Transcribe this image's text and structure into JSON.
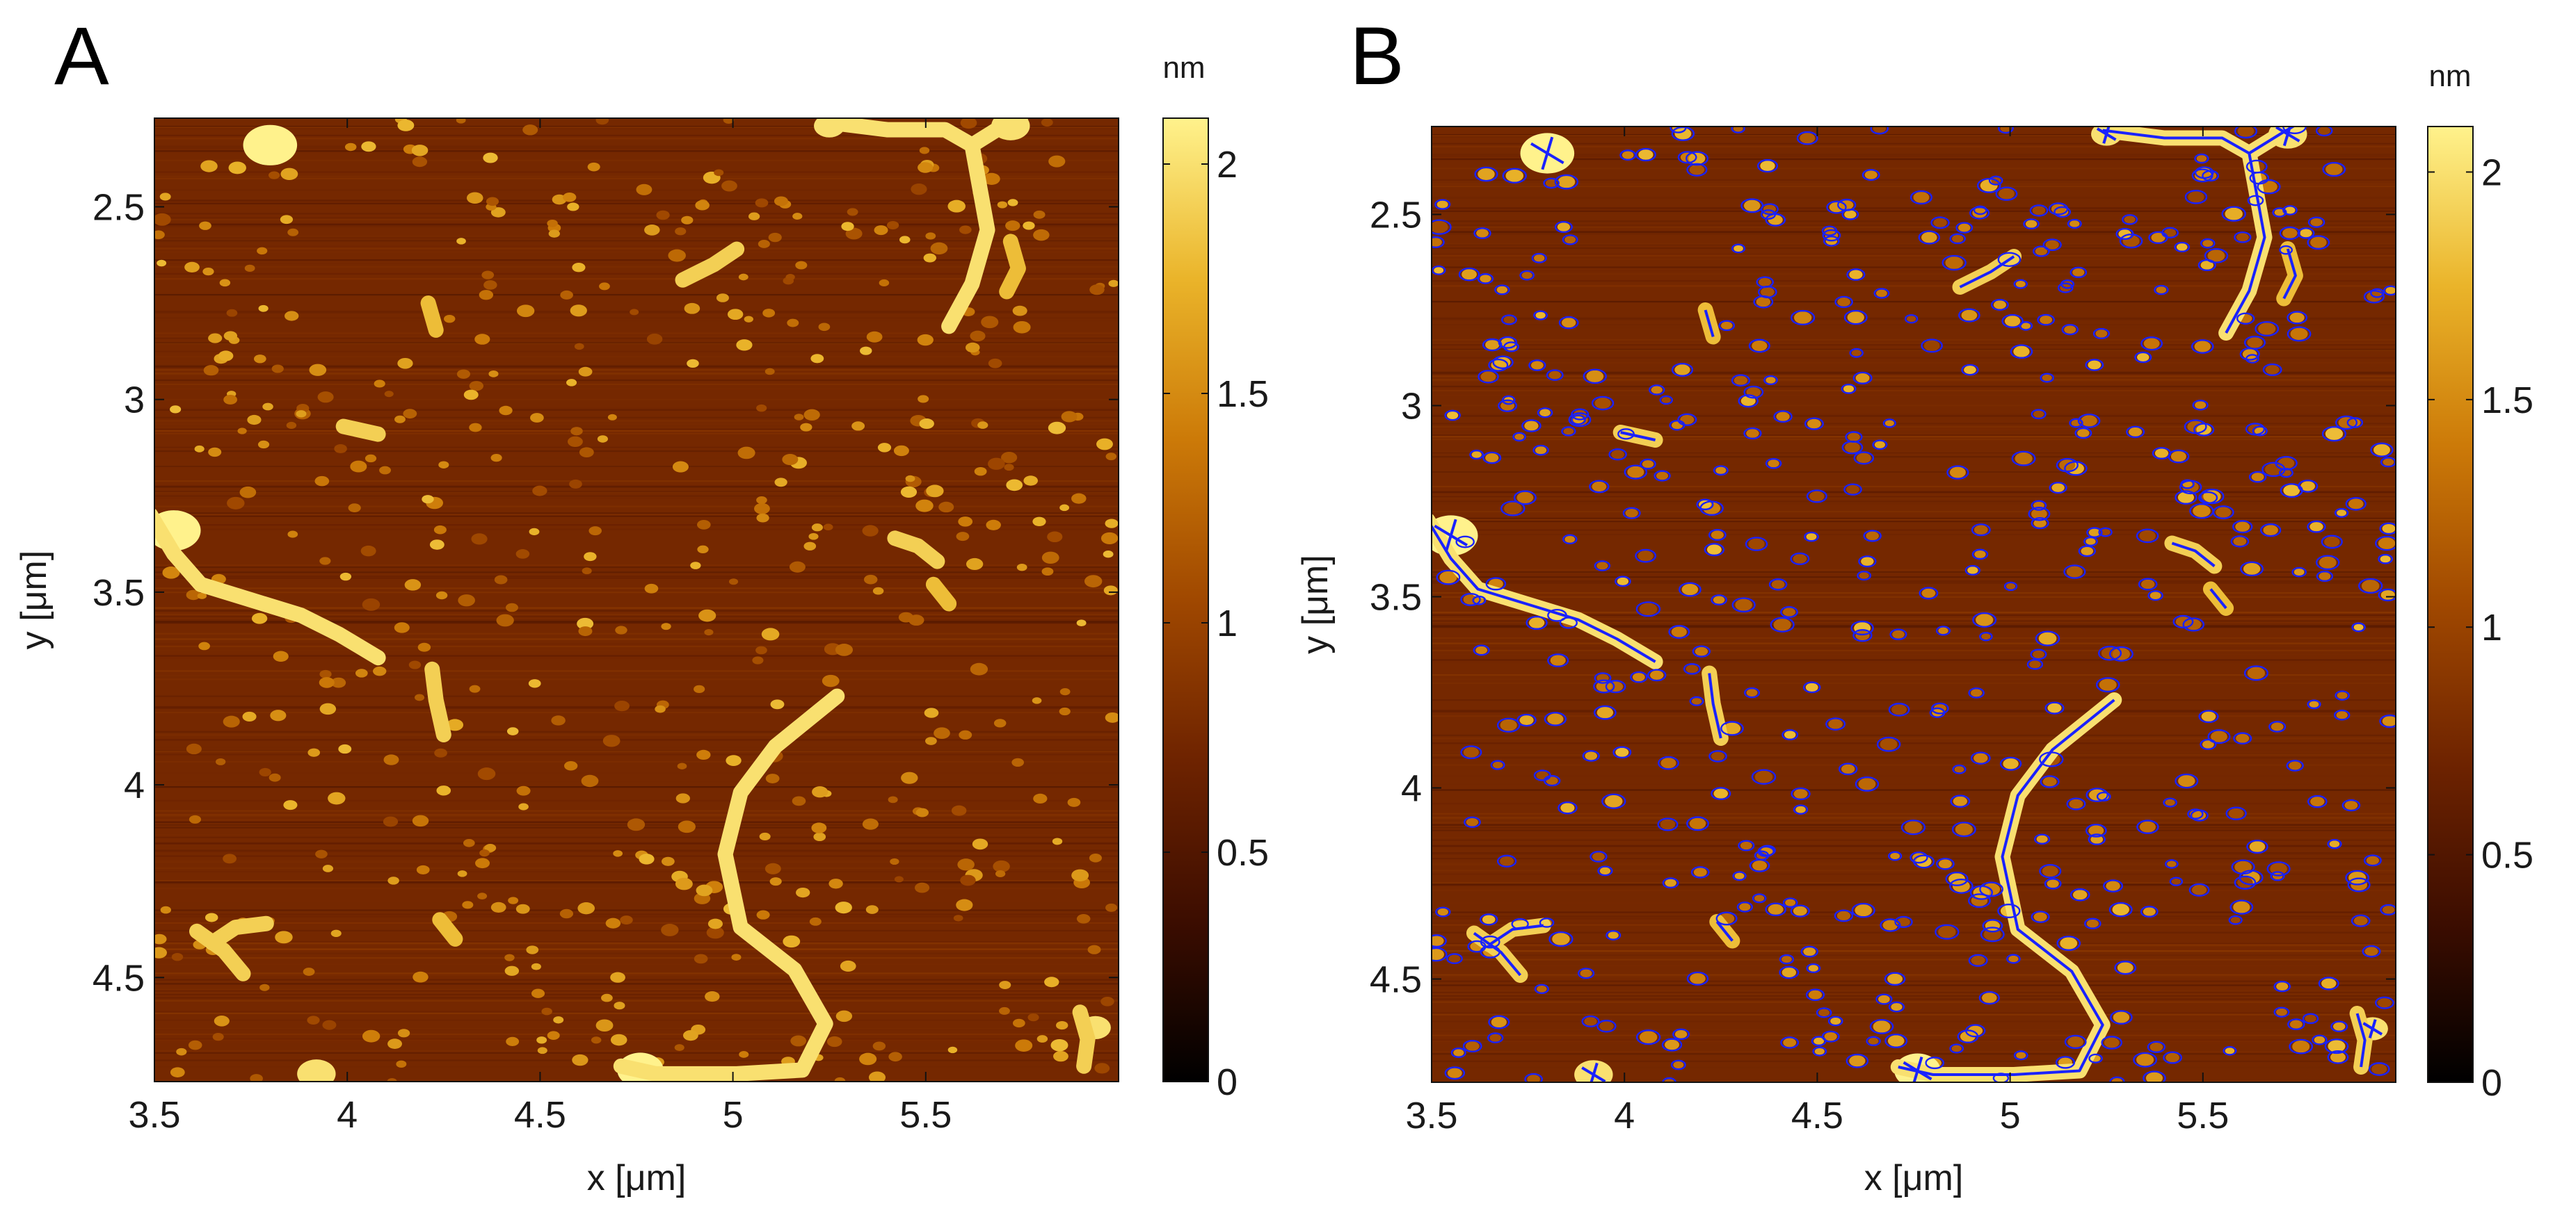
{
  "figure": {
    "panels": [
      {
        "label": "A",
        "xlabel": "x [μm]",
        "ylabel": "y [μm]",
        "colorbar_label": "nm",
        "overlay": false
      },
      {
        "label": "B",
        "xlabel": "x [μm]",
        "ylabel": "y [μm]",
        "colorbar_label": "nm",
        "overlay": true
      }
    ]
  },
  "chart_data": [
    {
      "type": "heatmap",
      "panel": "A",
      "description_free": true,
      "x_ticks": [
        "3.5",
        "4",
        "4.5",
        "5",
        "5.5"
      ],
      "x_tick_values": [
        3.5,
        4,
        4.5,
        5,
        5.5
      ],
      "y_ticks": [
        "2.5",
        "3",
        "3.5",
        "4",
        "4.5"
      ],
      "y_tick_values": [
        2.5,
        3,
        3.5,
        4,
        4.5
      ],
      "xlim": [
        3.5,
        6.0
      ],
      "ylim": [
        2.27,
        4.77
      ],
      "y_reversed": true,
      "colorbar_ticks": [
        "0",
        "0.5",
        "1",
        "1.5",
        "2"
      ],
      "colorbar_tick_values": [
        0,
        0.5,
        1,
        1.5,
        2
      ],
      "clim": [
        0,
        2.1
      ],
      "colormap": [
        "#000000",
        "#3c0d00",
        "#6e2300",
        "#a04800",
        "#cc7a08",
        "#eab42a",
        "#fff28c"
      ],
      "background_level": 0.75,
      "filaments": [
        {
          "points": [
            [
              4.71,
              4.73
            ],
            [
              4.8,
              4.75
            ],
            [
              5.01,
              4.75
            ],
            [
              5.18,
              4.74
            ],
            [
              5.24,
              4.62
            ],
            [
              5.16,
              4.48
            ],
            [
              5.02,
              4.37
            ],
            [
              4.98,
              4.18
            ],
            [
              5.02,
              4.02
            ],
            [
              5.11,
              3.9
            ],
            [
              5.27,
              3.77
            ]
          ],
          "height": 2.0
        },
        {
          "points": [
            [
              3.49,
              3.3
            ],
            [
              3.55,
              3.4
            ],
            [
              3.62,
              3.48
            ],
            [
              3.75,
              3.52
            ],
            [
              3.88,
              3.56
            ],
            [
              3.98,
              3.61
            ],
            [
              4.08,
              3.67
            ]
          ],
          "height": 2.0
        },
        {
          "points": [
            [
              5.24,
              2.28
            ],
            [
              5.4,
              2.3
            ],
            [
              5.55,
              2.3
            ],
            [
              5.62,
              2.34
            ],
            [
              5.64,
              2.45
            ],
            [
              5.66,
              2.56
            ],
            [
              5.62,
              2.7
            ],
            [
              5.56,
              2.81
            ]
          ],
          "height": 2.0
        },
        {
          "points": [
            [
              5.62,
              2.34
            ],
            [
              5.7,
              2.29
            ],
            [
              5.75,
              2.26
            ]
          ],
          "height": 2.0
        },
        {
          "points": [
            [
              4.87,
              2.69
            ],
            [
              4.95,
              2.65
            ],
            [
              5.01,
              2.61
            ]
          ],
          "height": 1.9
        },
        {
          "points": [
            [
              3.99,
              3.07
            ],
            [
              4.08,
              3.09
            ]
          ],
          "height": 1.9
        },
        {
          "points": [
            [
              4.22,
              3.7
            ],
            [
              4.23,
              3.78
            ],
            [
              4.25,
              3.87
            ]
          ],
          "height": 1.9
        },
        {
          "points": [
            [
              5.42,
              3.36
            ],
            [
              5.48,
              3.38
            ],
            [
              5.53,
              3.42
            ]
          ],
          "height": 1.9
        },
        {
          "points": [
            [
              3.61,
              4.38
            ],
            [
              3.68,
              4.43
            ],
            [
              3.73,
              4.49
            ]
          ],
          "height": 1.9
        },
        {
          "points": [
            [
              3.65,
              4.41
            ],
            [
              3.71,
              4.37
            ],
            [
              3.79,
              4.36
            ]
          ],
          "height": 1.9
        },
        {
          "points": [
            [
              5.9,
              4.59
            ],
            [
              5.92,
              4.66
            ],
            [
              5.91,
              4.73
            ]
          ],
          "height": 1.9
        },
        {
          "points": [
            [
              4.21,
              2.75
            ],
            [
              4.23,
              2.82
            ]
          ],
          "height": 1.8
        },
        {
          "points": [
            [
              5.72,
              2.59
            ],
            [
              5.74,
              2.66
            ],
            [
              5.71,
              2.72
            ]
          ],
          "height": 1.8
        },
        {
          "points": [
            [
              4.24,
              4.35
            ],
            [
              4.28,
              4.4
            ]
          ],
          "height": 1.8
        },
        {
          "points": [
            [
              5.52,
              3.48
            ],
            [
              5.56,
              3.53
            ]
          ],
          "height": 1.8
        }
      ],
      "blobs": [
        {
          "x": 3.8,
          "y": 2.34,
          "r": 0.07,
          "height": 2.1
        },
        {
          "x": 3.55,
          "y": 3.34,
          "r": 0.07,
          "height": 2.1
        },
        {
          "x": 3.92,
          "y": 4.75,
          "r": 0.05,
          "height": 2.0
        },
        {
          "x": 4.76,
          "y": 4.74,
          "r": 0.06,
          "height": 2.1
        },
        {
          "x": 5.25,
          "y": 2.29,
          "r": 0.04,
          "height": 2.0
        },
        {
          "x": 5.72,
          "y": 2.29,
          "r": 0.05,
          "height": 2.0
        },
        {
          "x": 5.94,
          "y": 4.63,
          "r": 0.04,
          "height": 2.0
        }
      ]
    },
    {
      "type": "heatmap",
      "panel": "B",
      "x_ticks": [
        "3.5",
        "4",
        "4.5",
        "5",
        "5.5"
      ],
      "x_tick_values": [
        3.5,
        4,
        4.5,
        5,
        5.5
      ],
      "y_ticks": [
        "2.5",
        "3",
        "3.5",
        "4",
        "4.5"
      ],
      "y_tick_values": [
        2.5,
        3,
        3.5,
        4,
        4.5
      ],
      "xlim": [
        3.5,
        6.0
      ],
      "ylim": [
        2.27,
        4.77
      ],
      "y_reversed": true,
      "colorbar_ticks": [
        "0",
        "0.5",
        "1",
        "1.5",
        "2"
      ],
      "colorbar_tick_values": [
        0,
        0.5,
        1,
        1.5,
        2
      ],
      "clim": [
        0,
        2.1
      ],
      "same_image_as": "A",
      "overlay_color": "#1a22ff"
    }
  ]
}
